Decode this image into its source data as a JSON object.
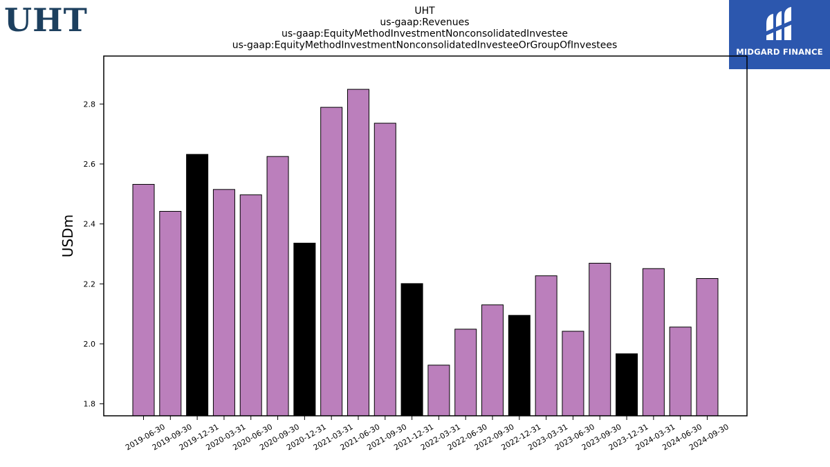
{
  "ticker": "UHT",
  "logo": {
    "text": "MIDGARD FINANCE",
    "icon": "midgard-logo-icon",
    "bg": "#2c57ae"
  },
  "chart_data": {
    "type": "bar",
    "title_lines": [
      "UHT",
      "us-gaap:Revenues",
      "us-gaap:EquityMethodInvestmentNonconsolidatedInvestee",
      "us-gaap:EquityMethodInvestmentNonconsolidatedInvesteeOrGroupOfInvestees"
    ],
    "ylabel": "USDm",
    "xlabel": "",
    "ylim": [
      1.76,
      2.96
    ],
    "yticks": [
      1.8,
      2.0,
      2.2,
      2.4,
      2.6,
      2.8
    ],
    "colors": {
      "quarter": "#bb7fbc",
      "year_end": "#000000"
    },
    "bars": [
      {
        "label": "2019-06-30",
        "value": 2.532,
        "year_end": false
      },
      {
        "label": "2019-09-30",
        "value": 2.442,
        "year_end": false
      },
      {
        "label": "2019-12-31",
        "value": 2.632,
        "year_end": true
      },
      {
        "label": "2020-03-31",
        "value": 2.515,
        "year_end": false
      },
      {
        "label": "2020-06-30",
        "value": 2.497,
        "year_end": false
      },
      {
        "label": "2020-09-30",
        "value": 2.625,
        "year_end": false
      },
      {
        "label": "2020-12-31",
        "value": 2.336,
        "year_end": true
      },
      {
        "label": "2021-03-31",
        "value": 2.789,
        "year_end": false
      },
      {
        "label": "2021-06-30",
        "value": 2.849,
        "year_end": false
      },
      {
        "label": "2021-09-30",
        "value": 2.736,
        "year_end": false
      },
      {
        "label": "2021-12-31",
        "value": 2.201,
        "year_end": true
      },
      {
        "label": "2022-03-31",
        "value": 1.929,
        "year_end": false
      },
      {
        "label": "2022-06-30",
        "value": 2.049,
        "year_end": false
      },
      {
        "label": "2022-09-30",
        "value": 2.13,
        "year_end": false
      },
      {
        "label": "2022-12-31",
        "value": 2.095,
        "year_end": true
      },
      {
        "label": "2023-03-31",
        "value": 2.227,
        "year_end": false
      },
      {
        "label": "2023-06-30",
        "value": 2.042,
        "year_end": false
      },
      {
        "label": "2023-09-30",
        "value": 2.269,
        "year_end": false
      },
      {
        "label": "2023-12-31",
        "value": 1.967,
        "year_end": true
      },
      {
        "label": "2024-03-31",
        "value": 2.251,
        "year_end": false
      },
      {
        "label": "2024-06-30",
        "value": 2.056,
        "year_end": false
      },
      {
        "label": "2024-09-30",
        "value": 2.218,
        "year_end": false
      }
    ]
  }
}
